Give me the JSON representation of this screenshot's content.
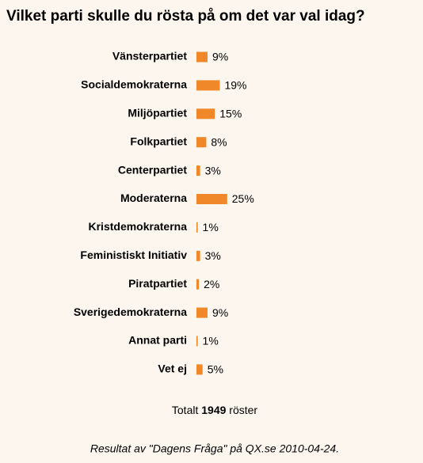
{
  "chart_data": {
    "type": "bar",
    "orientation": "horizontal",
    "title": "Vilket parti skulle du rösta på om det var val idag?",
    "categories": [
      "Vänsterpartiet",
      "Socialdemokraterna",
      "Miljöpartiet",
      "Folkpartiet",
      "Centerpartiet",
      "Moderaterna",
      "Kristdemokraterna",
      "Feministiskt Initiativ",
      "Piratpartiet",
      "Sverigedemokraterna",
      "Annat parti",
      "Vet ej"
    ],
    "values": [
      9,
      19,
      15,
      8,
      3,
      25,
      1,
      3,
      2,
      9,
      1,
      5
    ],
    "value_labels": [
      "9%",
      "19%",
      "15%",
      "8%",
      "3%",
      "25%",
      "1%",
      "3%",
      "2%",
      "9%",
      "1%",
      "5%"
    ],
    "color": "#f0882a",
    "total_prefix": "Totalt",
    "total": 1949,
    "total_suffix": "röster",
    "source": "Resultat av \"Dagens Fråga\" på QX.se 2010-04-24."
  }
}
